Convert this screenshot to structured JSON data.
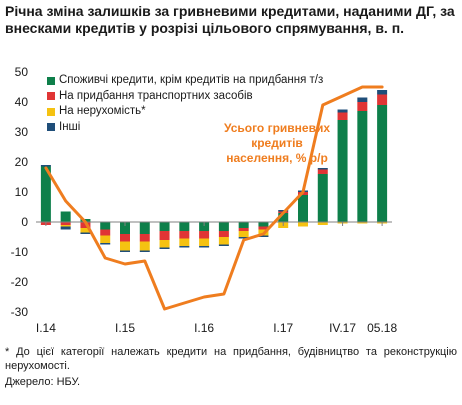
{
  "title": "Річна зміна залишків за гривневими кредитами, наданими ДГ, за внесками кредитів у розрізі цільового спрямування, в. п.",
  "footnote": "* До цієї категорії належать кредити на придбання, будівництво та реконструкцію нерухомості.",
  "source": "Джерело: НБУ.",
  "annotation": "Усього гривневих кредитів населення, % р/р",
  "colors": {
    "consumer": "#0e7f4a",
    "transport": "#e03535",
    "real_estate": "#f5c211",
    "other": "#1f4e79",
    "total": "#ef7d1f",
    "axis": "#808080"
  },
  "chart_data": {
    "type": "bar",
    "stacked": true,
    "x_tick_labels": [
      {
        "label": "I.14",
        "index": 0
      },
      {
        "label": "I.15",
        "index": 4
      },
      {
        "label": "I.16",
        "index": 8
      },
      {
        "label": "I.17",
        "index": 12
      },
      {
        "label": "IV.17",
        "index": 15
      },
      {
        "label": "05.18",
        "index": 17
      }
    ],
    "ylim": [
      -30,
      50
    ],
    "yticks": [
      -30,
      -20,
      -10,
      0,
      10,
      20,
      30,
      40,
      50
    ],
    "categories": [
      "1",
      "2",
      "3",
      "4",
      "5",
      "6",
      "7",
      "8",
      "9",
      "10",
      "11",
      "12",
      "13",
      "14",
      "15",
      "16",
      "17",
      "18"
    ],
    "series": [
      {
        "name": "Споживчі кредити, крім кредитів на придбання т/з",
        "color_key": "consumer",
        "values": [
          18.5,
          3.5,
          1.0,
          -2.5,
          -4.0,
          -4.0,
          -3.0,
          -3.0,
          -3.0,
          -3.0,
          -2.0,
          -1.5,
          3.0,
          9.0,
          16.0,
          34.0,
          37.0,
          39.0
        ]
      },
      {
        "name": "На придбання транспортних засобів",
        "color_key": "transport",
        "values": [
          -1.0,
          -1.0,
          -2.0,
          -2.0,
          -2.5,
          -2.5,
          -3.0,
          -2.5,
          -2.5,
          -2.0,
          -1.0,
          -1.0,
          0.5,
          1.0,
          1.5,
          2.5,
          3.0,
          3.5
        ]
      },
      {
        "name": "На нерухомість*",
        "color_key": "real_estate",
        "values": [
          0.0,
          -0.5,
          -1.5,
          -2.5,
          -3.0,
          -3.0,
          -2.5,
          -2.5,
          -2.5,
          -2.5,
          -2.0,
          -2.0,
          -2.0,
          -1.5,
          -1.0,
          -0.5,
          -0.5,
          -0.5
        ]
      },
      {
        "name": "Інші",
        "color_key": "other",
        "values": [
          0.5,
          -1.0,
          -0.5,
          -0.5,
          -0.5,
          -0.5,
          -0.5,
          -0.5,
          -0.5,
          -0.5,
          -0.5,
          -0.5,
          0.5,
          0.5,
          0.5,
          1.0,
          1.5,
          1.5
        ]
      }
    ],
    "line": {
      "name": "Усього гривневих кредитів населення, % р/р",
      "color_key": "total",
      "values": [
        18.0,
        7.0,
        0.0,
        -12.0,
        -14.0,
        -13.0,
        -29.0,
        -27.0,
        -25.0,
        -24.0,
        -6.0,
        -4.0,
        3.0,
        10.0,
        39.0,
        42.0,
        45.0,
        45.0
      ]
    }
  }
}
